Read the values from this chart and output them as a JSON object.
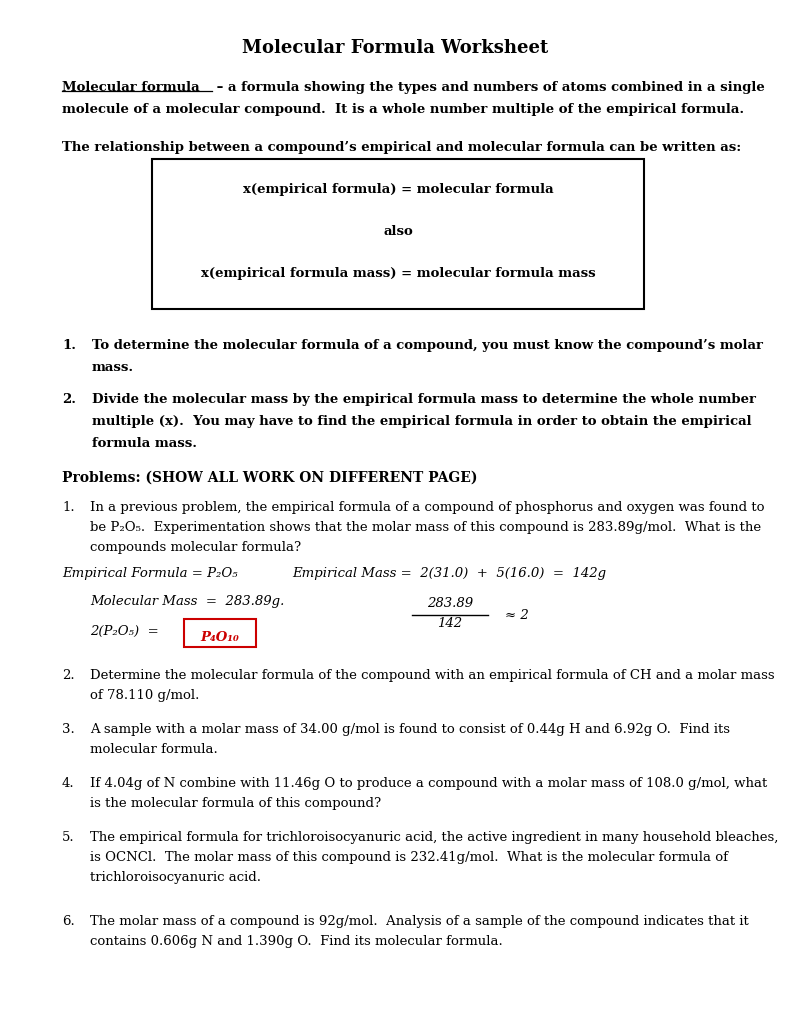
{
  "title": "Molecular Formula Worksheet",
  "bg_color": "#ffffff",
  "text_color": "#000000",
  "red_color": "#cc0000",
  "title_fontsize": 13,
  "body_fontsize": 9.5,
  "bold_fontsize": 9.5,
  "definition_underline": "Molecular formula",
  "definition_rest": " – a formula showing the types and numbers of atoms combined in a single",
  "definition_line2": "molecule of a molecular compound.  It is a whole number multiple of the empirical formula.",
  "relationship_text": "The relationship between a compound’s empirical and molecular formula can be written as:",
  "box_line1": "x(empirical formula) = molecular formula",
  "box_line2": "also",
  "box_line3": "x(empirical formula mass) = molecular formula mass",
  "note1_num": "1.",
  "note1_line1": "To determine the molecular formula of a compound, you must know the compound’s molar",
  "note1_line2": "mass.",
  "note2_num": "2.",
  "note2_line1": "Divide the molecular mass by the empirical formula mass to determine the whole number",
  "note2_line2": "multiple (x).  You may have to find the empirical formula in order to obtain the empirical",
  "note2_line3": "formula mass.",
  "problems_header": "Problems: (SHOW ALL WORK ON DIFFERENT PAGE)",
  "prob1_intro": "1.",
  "prob1_line1": "In a previous problem, the empirical formula of a compound of phosphorus and oxygen was found to",
  "prob1_line2": "be P₂O₅.  Experimentation shows that the molar mass of this compound is 283.89g/mol.  What is the",
  "prob1_line3": "compounds molecular formula?",
  "prob1_ef_label": "Empirical Formula = P₂O₅",
  "prob1_em_label": "Empirical Mass =  2(31.0)  +  5(16.0)  =  142g",
  "prob1_mm": "Molecular Mass  =  283.89g.",
  "prob1_calc_top": "283.89",
  "prob1_calc_bot": "142",
  "prob1_calc_approx": "≈ 2",
  "prob1_mol_left": "2(P₂O₅)  =",
  "prob1_answer": "P₄O₁₀",
  "prob2_num": "2.",
  "prob2_line1": "Determine the molecular formula of the compound with an empirical formula of CH and a molar mass",
  "prob2_line2": "of 78.110 g/mol.",
  "prob3_num": "3.",
  "prob3_line1": "A sample with a molar mass of 34.00 g/mol is found to consist of 0.44g H and 6.92g O.  Find its",
  "prob3_line2": "molecular formula.",
  "prob4_num": "4.",
  "prob4_line1": "If 4.04g of N combine with 11.46g O to produce a compound with a molar mass of 108.0 g/mol, what",
  "prob4_line2": "is the molecular formula of this compound?",
  "prob5_num": "5.",
  "prob5_line1": "The empirical formula for trichloroisocyanuric acid, the active ingredient in many household bleaches,",
  "prob5_line2": "is OCNCl.  The molar mass of this compound is 232.41g/mol.  What is the molecular formula of",
  "prob5_line3": "trichloroisocyanuric acid.",
  "prob6_num": "6.",
  "prob6_line1": "The molar mass of a compound is 92g/mol.  Analysis of a sample of the compound indicates that it",
  "prob6_line2": "contains 0.606g N and 1.390g O.  Find its molecular formula."
}
